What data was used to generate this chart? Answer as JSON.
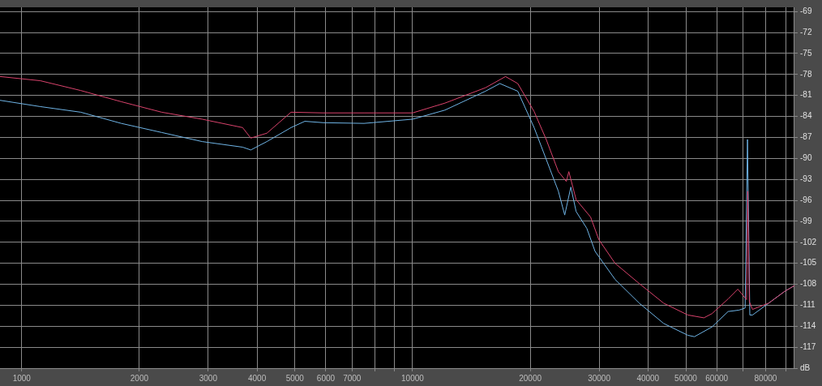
{
  "chart_data": {
    "type": "line",
    "log": "x",
    "grid": true,
    "legend": false,
    "marker": "none",
    "line_style": "solid",
    "xlim": [
      880,
      94800
    ],
    "ylim": [
      -120,
      -68.4
    ],
    "xticks": [
      1000,
      2000,
      3000,
      4000,
      5000,
      6000,
      7000,
      {
        "value": 8000,
        "label": null
      },
      {
        "value": 9000,
        "label": null
      },
      10000,
      20000,
      30000,
      40000,
      50000,
      60000,
      {
        "value": 70000,
        "label": null
      },
      80000,
      {
        "value": 90000,
        "label": null
      }
    ],
    "yticks": [
      -69,
      -72,
      -75,
      -78,
      -81,
      -84,
      -87,
      -90,
      -93,
      -96,
      -99,
      -102,
      -105,
      -108,
      -111,
      -114,
      -117,
      {
        "value": -120,
        "label": "dB"
      }
    ],
    "series": [
      {
        "color": "#d9436c",
        "x": [
          880,
          1116,
          1416,
          1798,
          2281,
          2895,
          3674,
          3855,
          4238,
          4887,
          5913,
          7511,
          10000,
          12100,
          15360,
          17290,
          18580,
          20460,
          21970,
          23600,
          24730,
          25100,
          26200,
          28540,
          29940,
          32950,
          38000,
          43860,
          50600,
          55620,
          58350,
          64150,
          67920,
          71500,
          72000,
          72700,
          74070,
          81470,
          89620,
          94800
        ],
        "values": [
          -78.3,
          -78.9,
          -80.3,
          -81.9,
          -83.4,
          -84.4,
          -85.6,
          -87.1,
          -86.4,
          -83.4,
          -83.5,
          -83.5,
          -83.5,
          -82.1,
          -79.9,
          -78.3,
          -79.3,
          -83.3,
          -87.3,
          -91.9,
          -93.3,
          -91.9,
          -95.9,
          -98.4,
          -101.6,
          -105,
          -107.9,
          -110.7,
          -112.4,
          -112.8,
          -112.2,
          -110.1,
          -108.7,
          -110.2,
          -94.7,
          -110.5,
          -111.6,
          -110.7,
          -109,
          -108.2
        ]
      },
      {
        "color": "#6fb4e6",
        "x": [
          880,
          1116,
          1416,
          1798,
          2281,
          2895,
          3674,
          3855,
          4238,
          4887,
          5300,
          5913,
          7511,
          10000,
          12100,
          15360,
          16720,
          18580,
          20460,
          23600,
          24500,
          25400,
          26200,
          27900,
          29300,
          32950,
          38000,
          43860,
          50600,
          52600,
          58350,
          64150,
          68400,
          70900,
          71900,
          72900,
          74070,
          81470,
          89620,
          94800
        ],
        "values": [
          -81.7,
          -82.6,
          -83.4,
          -85,
          -86.3,
          -87.6,
          -88.4,
          -88.8,
          -87.6,
          -85.6,
          -84.7,
          -84.9,
          -85,
          -84.4,
          -83.1,
          -80.4,
          -79.3,
          -80.4,
          -85.6,
          -94.7,
          -98.1,
          -94.1,
          -97.6,
          -100,
          -103.3,
          -107.3,
          -110.7,
          -113.6,
          -115.3,
          -115.5,
          -114.1,
          -111.9,
          -111.7,
          -111.4,
          -87.3,
          -112.4,
          -112.4,
          -110.7,
          -109,
          -108.2
        ]
      }
    ]
  }
}
